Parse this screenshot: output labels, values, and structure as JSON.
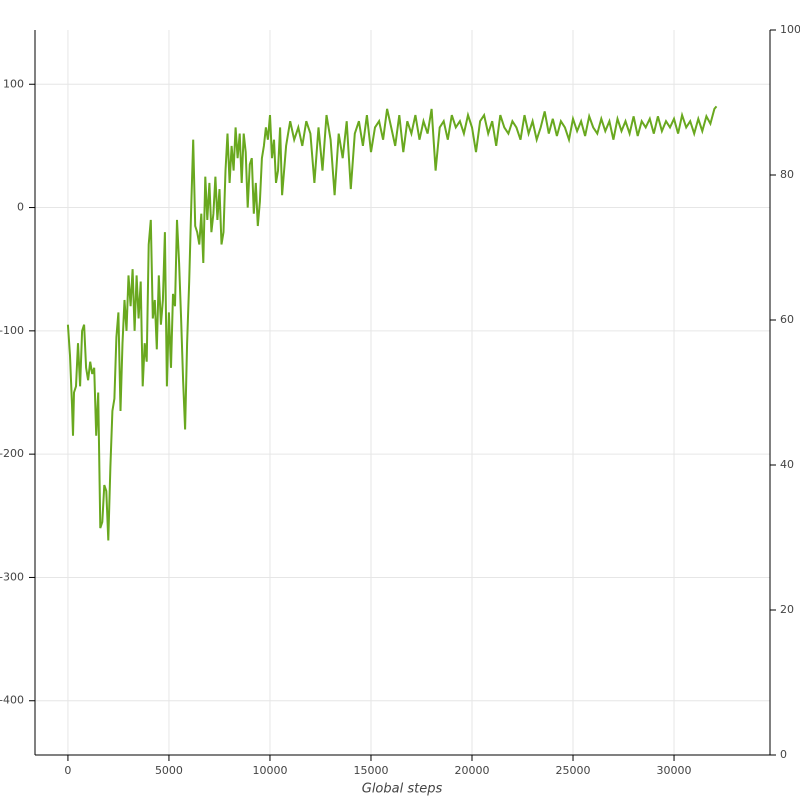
{
  "chart_data": {
    "type": "line",
    "x_label": "Global steps",
    "color": "#69a81f",
    "grid": true,
    "xlim": [
      -1630,
      34750
    ],
    "xticks": [
      0,
      5000,
      10000,
      15000,
      20000,
      25000,
      30000
    ],
    "ylim": [
      -444,
      144
    ],
    "yticks": [
      -400,
      -300,
      -200,
      -100,
      0,
      100
    ],
    "y2lim": [
      0,
      100
    ],
    "y2ticks": [
      0,
      20,
      40,
      60,
      80,
      100
    ],
    "x": [
      0,
      100,
      200,
      250,
      300,
      400,
      500,
      600,
      700,
      800,
      900,
      1000,
      1100,
      1200,
      1300,
      1400,
      1500,
      1600,
      1700,
      1800,
      1900,
      2000,
      2100,
      2200,
      2300,
      2400,
      2500,
      2600,
      2700,
      2800,
      2900,
      3000,
      3100,
      3200,
      3300,
      3400,
      3500,
      3600,
      3700,
      3800,
      3900,
      4000,
      4100,
      4200,
      4300,
      4400,
      4500,
      4600,
      4700,
      4800,
      4900,
      5000,
      5100,
      5200,
      5300,
      5400,
      5500,
      5600,
      5700,
      5800,
      5900,
      6000,
      6100,
      6200,
      6300,
      6400,
      6500,
      6600,
      6700,
      6800,
      6900,
      7000,
      7100,
      7200,
      7300,
      7400,
      7500,
      7600,
      7700,
      7800,
      7900,
      8000,
      8100,
      8200,
      8300,
      8400,
      8500,
      8600,
      8700,
      8800,
      8900,
      9000,
      9100,
      9200,
      9300,
      9400,
      9500,
      9600,
      9700,
      9800,
      9900,
      10000,
      10100,
      10200,
      10300,
      10400,
      10500,
      10600,
      10700,
      10800,
      10900,
      11000,
      11200,
      11400,
      11600,
      11800,
      12000,
      12200,
      12400,
      12600,
      12800,
      13000,
      13200,
      13400,
      13600,
      13800,
      14000,
      14200,
      14400,
      14600,
      14800,
      15000,
      15200,
      15400,
      15600,
      15800,
      16000,
      16200,
      16400,
      16600,
      16800,
      17000,
      17200,
      17400,
      17600,
      17800,
      18000,
      18200,
      18400,
      18600,
      18800,
      19000,
      19200,
      19400,
      19600,
      19800,
      20000,
      20200,
      20400,
      20600,
      20800,
      21000,
      21200,
      21400,
      21600,
      21800,
      22000,
      22200,
      22400,
      22600,
      22800,
      23000,
      23200,
      23400,
      23600,
      23800,
      24000,
      24200,
      24400,
      24600,
      24800,
      25000,
      25200,
      25400,
      25600,
      25800,
      26000,
      26200,
      26400,
      26600,
      26800,
      27000,
      27200,
      27400,
      27600,
      27800,
      28000,
      28200,
      28400,
      28600,
      28800,
      29000,
      29200,
      29400,
      29600,
      29800,
      30000,
      30200,
      30400,
      30600,
      30800,
      31000,
      31200,
      31400,
      31600,
      31800,
      32000,
      32100
    ],
    "values": [
      -95,
      -120,
      -160,
      -185,
      -150,
      -145,
      -110,
      -145,
      -100,
      -95,
      -130,
      -140,
      -125,
      -135,
      -130,
      -185,
      -150,
      -260,
      -255,
      -225,
      -230,
      -270,
      -210,
      -165,
      -155,
      -105,
      -85,
      -165,
      -110,
      -75,
      -100,
      -55,
      -80,
      -50,
      -100,
      -55,
      -90,
      -60,
      -145,
      -110,
      -125,
      -30,
      -10,
      -90,
      -75,
      -115,
      -55,
      -95,
      -75,
      -20,
      -145,
      -85,
      -130,
      -70,
      -80,
      -10,
      -45,
      -90,
      -140,
      -180,
      -110,
      -60,
      0,
      55,
      -15,
      -20,
      -30,
      -5,
      -45,
      25,
      -10,
      20,
      -20,
      -5,
      25,
      -10,
      15,
      -30,
      -20,
      30,
      60,
      20,
      50,
      30,
      65,
      40,
      60,
      20,
      60,
      45,
      0,
      35,
      40,
      -5,
      20,
      -15,
      5,
      40,
      50,
      65,
      55,
      75,
      40,
      55,
      20,
      30,
      65,
      10,
      30,
      50,
      60,
      70,
      55,
      65,
      50,
      70,
      60,
      20,
      65,
      30,
      75,
      55,
      10,
      60,
      40,
      70,
      15,
      60,
      70,
      50,
      75,
      45,
      65,
      70,
      55,
      80,
      65,
      50,
      75,
      45,
      70,
      60,
      75,
      55,
      70,
      60,
      80,
      30,
      65,
      70,
      55,
      75,
      65,
      70,
      60,
      75,
      65,
      45,
      70,
      75,
      60,
      70,
      50,
      75,
      65,
      60,
      70,
      65,
      55,
      75,
      60,
      70,
      55,
      65,
      78,
      60,
      72,
      58,
      70,
      65,
      55,
      72,
      62,
      70,
      58,
      74,
      65,
      60,
      72,
      62,
      70,
      55,
      72,
      62,
      70,
      60,
      74,
      58,
      70,
      65,
      72,
      60,
      74,
      62,
      70,
      65,
      72,
      60,
      75,
      65,
      70,
      60,
      72,
      62,
      74,
      68,
      80,
      82
    ]
  }
}
